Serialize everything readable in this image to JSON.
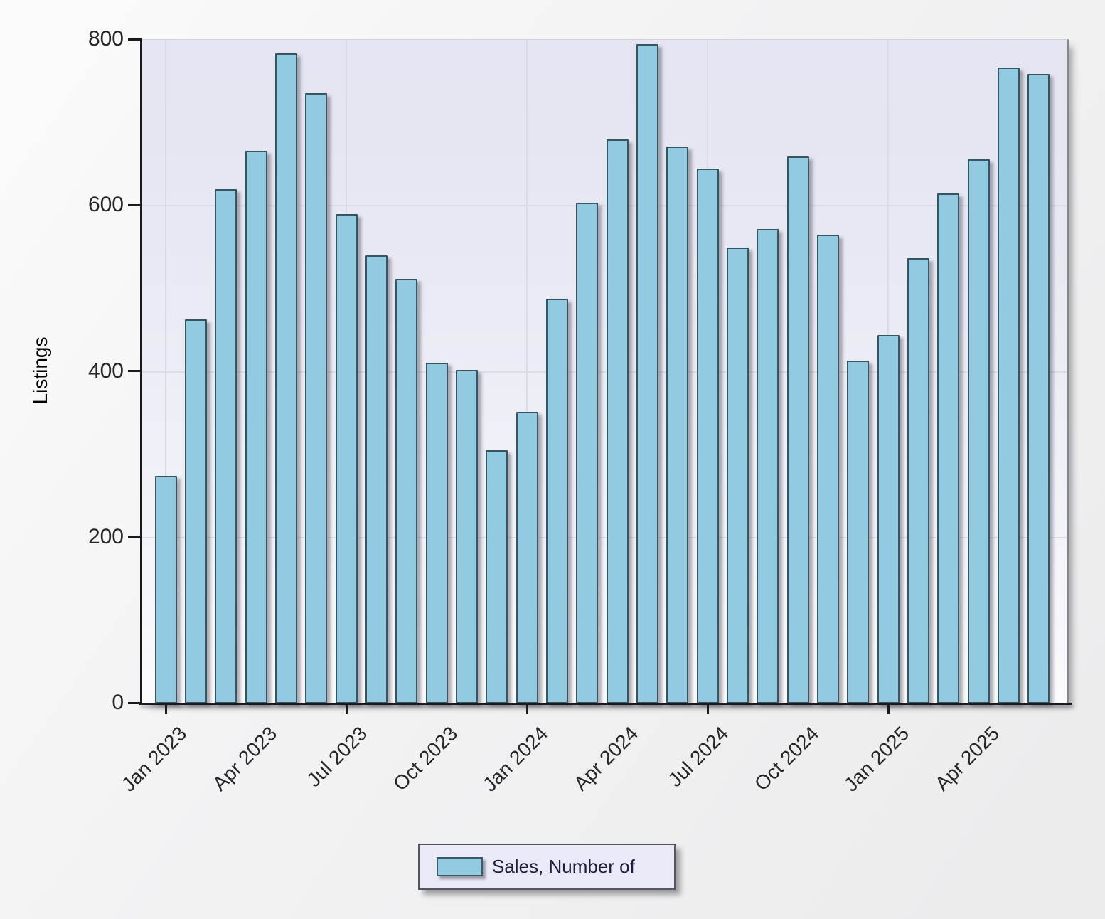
{
  "chart_data": {
    "type": "bar",
    "title": "",
    "xlabel": "",
    "ylabel": "Listings",
    "ylim": [
      0,
      800
    ],
    "y_ticks": [
      0,
      200,
      400,
      600,
      800
    ],
    "grid": true,
    "legend_position": "bottom",
    "x_label_every": 3,
    "x_major_tick_every": 6,
    "categories": [
      "Jan 2023",
      "Feb 2023",
      "Mar 2023",
      "Apr 2023",
      "May 2023",
      "Jun 2023",
      "Jul 2023",
      "Aug 2023",
      "Sep 2023",
      "Oct 2023",
      "Nov 2023",
      "Dec 2023",
      "Jan 2024",
      "Feb 2024",
      "Mar 2024",
      "Apr 2024",
      "May 2024",
      "Jun 2024",
      "Jul 2024",
      "Aug 2024",
      "Sep 2024",
      "Oct 2024",
      "Nov 2024",
      "Dec 2024",
      "Jan 2025",
      "Feb 2025",
      "Mar 2025",
      "Apr 2025",
      "May 2025",
      "Jun 2025"
    ],
    "series": [
      {
        "name": "Sales, Number of",
        "values": [
          274,
          463,
          620,
          666,
          784,
          736,
          590,
          540,
          512,
          411,
          402,
          305,
          352,
          488,
          604,
          680,
          795,
          671,
          645,
          550,
          572,
          659,
          565,
          413,
          444,
          537,
          615,
          656,
          767,
          759
        ]
      }
    ],
    "colors": {
      "bar_fill": "#92cbe1",
      "bar_border": "#37555f",
      "grid_line": "#dcdce8",
      "axis": "#1a1a1e",
      "text": "#26262a",
      "legend_bg": "#e9e9f8",
      "legend_text": "#1e1e3c"
    }
  }
}
